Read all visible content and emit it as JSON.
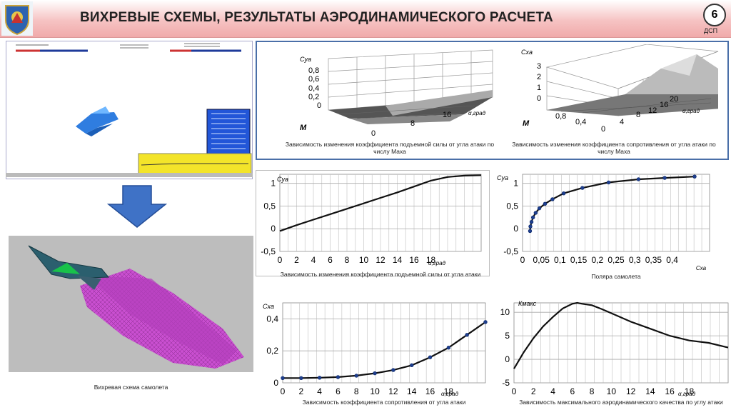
{
  "header": {
    "title": "ВИХРЕВЫЕ СХЕМЫ, РЕЗУЛЬТАТЫ АЭРОДИНАМИЧЕСКОГО РАСЧЕТА",
    "slide_number": "6",
    "classification": "ДСП",
    "emblem_icon": "coat-of-arms-icon"
  },
  "vortex_panel": {
    "caption": "Вихревая схема самолета"
  },
  "surface_cya": {
    "ylabel": "Cya",
    "mlabel": "M",
    "xlabel": "α,град",
    "z_ticks": [
      "0,8",
      "0,6",
      "0,4",
      "0,2",
      "0"
    ],
    "alpha_ticks": [
      "16",
      "8",
      "0"
    ],
    "caption": "Зависимость изменения коэффициента подъемной силы от угла атаки по числу Маха"
  },
  "surface_cxa": {
    "ylabel": "Cxa",
    "mlabel": "M",
    "xlabel": "α,град",
    "z_ticks": [
      "3",
      "2",
      "1",
      "0"
    ],
    "m_ticks": [
      "0,8",
      "0,4",
      "0"
    ],
    "alpha_ticks": [
      "4",
      "8",
      "12",
      "16",
      "20"
    ],
    "caption": "Зависимость изменения коэффициента сопротивления от угла атаки по числу Маха"
  },
  "chart_data": [
    {
      "type": "line",
      "id": "cya_alpha",
      "ylabel": "Cya",
      "xlabel": "α,град",
      "xlim": [
        0,
        24
      ],
      "ylim": [
        -0.5,
        1.2
      ],
      "x_ticks": [
        "0",
        "2",
        "4",
        "6",
        "8",
        "10",
        "12",
        "14",
        "16",
        "18"
      ],
      "y_ticks": [
        "1",
        "0,5",
        "0",
        "-0,5"
      ],
      "x": [
        0,
        2,
        4,
        6,
        8,
        10,
        12,
        14,
        16,
        18,
        20,
        22,
        24
      ],
      "values": [
        -0.05,
        0.08,
        0.2,
        0.32,
        0.44,
        0.56,
        0.68,
        0.8,
        0.93,
        1.06,
        1.14,
        1.17,
        1.18
      ],
      "caption": "Зависимость изменения коэффициента подъемной силы от угла атаки"
    },
    {
      "type": "line",
      "id": "polar",
      "ylabel": "Cya",
      "xlabel": "Cxa",
      "xlim": [
        0,
        0.5
      ],
      "ylim": [
        -0.5,
        1.2
      ],
      "x_ticks": [
        "0",
        "0,05",
        "0,1",
        "0,15",
        "0,2",
        "0,25",
        "0,3",
        "0,35",
        "0,4"
      ],
      "y_ticks": [
        "1",
        "0,5",
        "0",
        "-0,5"
      ],
      "x": [
        0.02,
        0.021,
        0.024,
        0.028,
        0.035,
        0.045,
        0.06,
        0.08,
        0.11,
        0.16,
        0.23,
        0.31,
        0.38,
        0.46
      ],
      "values": [
        -0.05,
        0.05,
        0.15,
        0.25,
        0.35,
        0.45,
        0.55,
        0.65,
        0.78,
        0.9,
        1.02,
        1.09,
        1.12,
        1.15
      ],
      "caption": "Поляра самолета"
    },
    {
      "type": "line",
      "id": "cxa_alpha",
      "ylabel": "Cxa",
      "xlabel": "α,град",
      "xlim": [
        0,
        22
      ],
      "ylim": [
        0,
        0.5
      ],
      "x_ticks": [
        "0",
        "2",
        "4",
        "6",
        "8",
        "10",
        "12",
        "14",
        "16",
        "18"
      ],
      "y_ticks": [
        "0,4",
        "0,2",
        "0"
      ],
      "x": [
        0,
        2,
        4,
        6,
        8,
        10,
        12,
        14,
        16,
        18,
        20,
        22
      ],
      "values": [
        0.03,
        0.03,
        0.032,
        0.036,
        0.045,
        0.06,
        0.08,
        0.11,
        0.16,
        0.22,
        0.3,
        0.38
      ],
      "caption": "Зависимость коэффициента сопротивления от угла атаки"
    },
    {
      "type": "line",
      "id": "kmax_alpha",
      "ylabel": "Кмакс",
      "xlabel": "α,град",
      "xlim": [
        0,
        22
      ],
      "ylim": [
        -5,
        12
      ],
      "x_ticks": [
        "0",
        "2",
        "4",
        "6",
        "8",
        "10",
        "12",
        "14",
        "16",
        "18"
      ],
      "y_ticks": [
        "10",
        "5",
        "0",
        "-5"
      ],
      "x": [
        0,
        1,
        2,
        3,
        4,
        5,
        6,
        6.5,
        7,
        8,
        9,
        10,
        12,
        14,
        16,
        18,
        20,
        22
      ],
      "values": [
        -2,
        1.5,
        4.5,
        7,
        9,
        10.8,
        11.8,
        12,
        11.8,
        11.5,
        10.7,
        9.8,
        8,
        6.5,
        5,
        4,
        3.5,
        2.5
      ],
      "caption": "Зависимость максимального аэродинамического качества по углу атаки"
    }
  ]
}
